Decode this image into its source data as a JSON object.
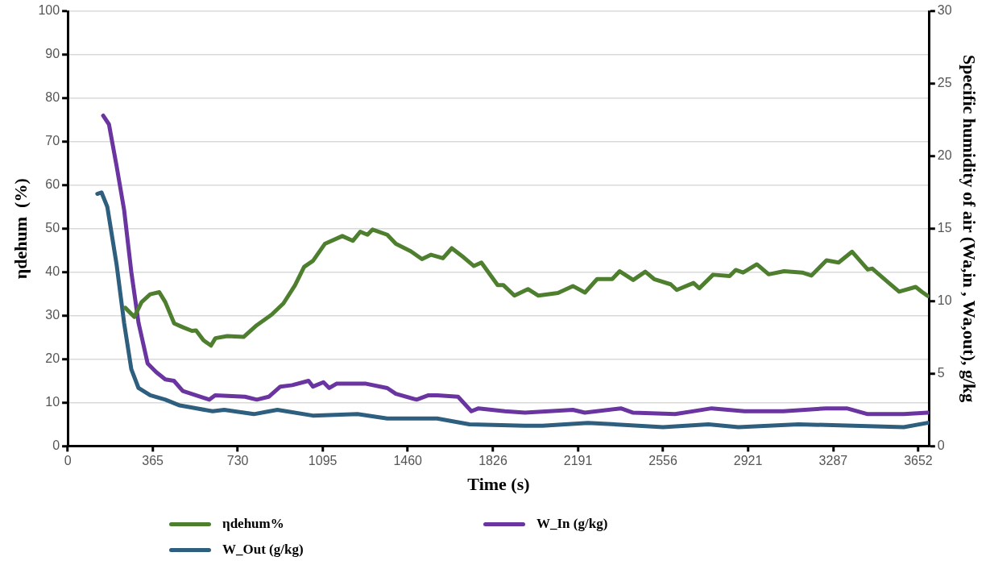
{
  "chart_data": {
    "type": "line",
    "xlabel": "Time (s)",
    "ylabel": "ηdehum  (%)",
    "y2label": "Specific humidity of air (Wa,in , Wa,out), g/kg",
    "xlim": [
      0,
      3700
    ],
    "xticks": [
      0,
      365,
      730,
      1095,
      1460,
      1826,
      2191,
      2556,
      2921,
      3287,
      3652
    ],
    "ylim": [
      0,
      100
    ],
    "yticks": [
      0,
      10,
      20,
      30,
      40,
      50,
      60,
      70,
      80,
      90,
      100
    ],
    "y2lim": [
      0,
      30
    ],
    "y2ticks": [
      0,
      5,
      10,
      15,
      20,
      25,
      30
    ],
    "grid": "y",
    "legend": "bottom",
    "marker": "none",
    "line_style": "solid",
    "series": [
      {
        "name": "ηdehum%",
        "color": "#4e7f2f",
        "x": [
          247,
          286,
          317,
          354,
          393,
          419,
          457,
          495,
          533,
          551,
          583,
          615,
          634,
          685,
          755,
          812,
          875,
          926,
          976,
          1015,
          1053,
          1104,
          1179,
          1224,
          1256,
          1287,
          1309,
          1372,
          1409,
          1473,
          1521,
          1560,
          1611,
          1649,
          1700,
          1744,
          1776,
          1846,
          1871,
          1918,
          1976,
          2021,
          2105,
          2169,
          2221,
          2273,
          2338,
          2370,
          2428,
          2480,
          2518,
          2589,
          2615,
          2687,
          2712,
          2771,
          2842,
          2868,
          2900,
          2959,
          3010,
          3076,
          3154,
          3193,
          3258,
          3310,
          3368,
          3435,
          3455,
          3526,
          3570,
          3641,
          3667,
          3693
        ],
        "values": [
          31.8,
          29.7,
          33.1,
          34.9,
          35.4,
          33.1,
          28.2,
          27.3,
          26.5,
          26.6,
          24.3,
          23.1,
          24.8,
          25.3,
          25.1,
          27.8,
          30.2,
          32.8,
          37,
          41.2,
          42.6,
          46.5,
          48.3,
          47.2,
          49.3,
          48.6,
          49.8,
          48.6,
          46.5,
          44.8,
          43,
          44,
          43.2,
          45.5,
          43.4,
          41.4,
          42.2,
          37,
          37,
          34.6,
          36.1,
          34.6,
          35.2,
          36.8,
          35.3,
          38.4,
          38.4,
          40.2,
          38.2,
          40.1,
          38.4,
          37.2,
          35.9,
          37.5,
          36.3,
          39.4,
          39.1,
          40.5,
          39.9,
          41.8,
          39.5,
          40.2,
          39.9,
          39.2,
          42.7,
          42.2,
          44.7,
          40.6,
          40.8,
          37.5,
          35.5,
          36.6,
          35.5,
          34.5
        ]
      },
      {
        "name": "W_In (g/kg)",
        "color": "#6a35a0",
        "axis": "y2",
        "x": [
          152,
          177,
          210,
          242,
          273,
          304,
          343,
          380,
          419,
          456,
          494,
          608,
          633,
          761,
          812,
          863,
          913,
          964,
          1034,
          1053,
          1098,
          1123,
          1154,
          1281,
          1372,
          1409,
          1498,
          1549,
          1587,
          1676,
          1733,
          1764,
          1877,
          1963,
          2169,
          2220,
          2375,
          2428,
          2608,
          2765,
          2906,
          3073,
          3255,
          3345,
          3435,
          3590,
          3693
        ],
        "values": [
          22.8,
          22.2,
          19.3,
          16.3,
          12,
          8.5,
          5.7,
          5.1,
          4.6,
          4.5,
          3.8,
          3.2,
          3.5,
          3.4,
          3.2,
          3.4,
          4.1,
          4.2,
          4.5,
          4.1,
          4.4,
          4,
          4.3,
          4.3,
          4,
          3.6,
          3.2,
          3.5,
          3.5,
          3.4,
          2.4,
          2.6,
          2.4,
          2.3,
          2.5,
          2.3,
          2.6,
          2.3,
          2.2,
          2.6,
          2.4,
          2.4,
          2.6,
          2.6,
          2.2,
          2.2,
          2.3
        ]
      },
      {
        "name": "W_Out (g/kg)",
        "color": "#2f5f7f",
        "axis": "y2",
        "x": [
          127,
          145,
          170,
          210,
          242,
          273,
          304,
          354,
          419,
          481,
          622,
          672,
          799,
          900,
          1052,
          1244,
          1372,
          1586,
          1725,
          1963,
          2039,
          2234,
          2556,
          2751,
          2880,
          3138,
          3590,
          3693
        ],
        "values": [
          17.4,
          17.5,
          16.5,
          12.5,
          8.5,
          5.3,
          4,
          3.5,
          3.2,
          2.8,
          2.4,
          2.5,
          2.2,
          2.5,
          2.1,
          2.2,
          1.9,
          1.9,
          1.5,
          1.4,
          1.4,
          1.6,
          1.3,
          1.5,
          1.3,
          1.5,
          1.3,
          1.6
        ]
      }
    ]
  }
}
